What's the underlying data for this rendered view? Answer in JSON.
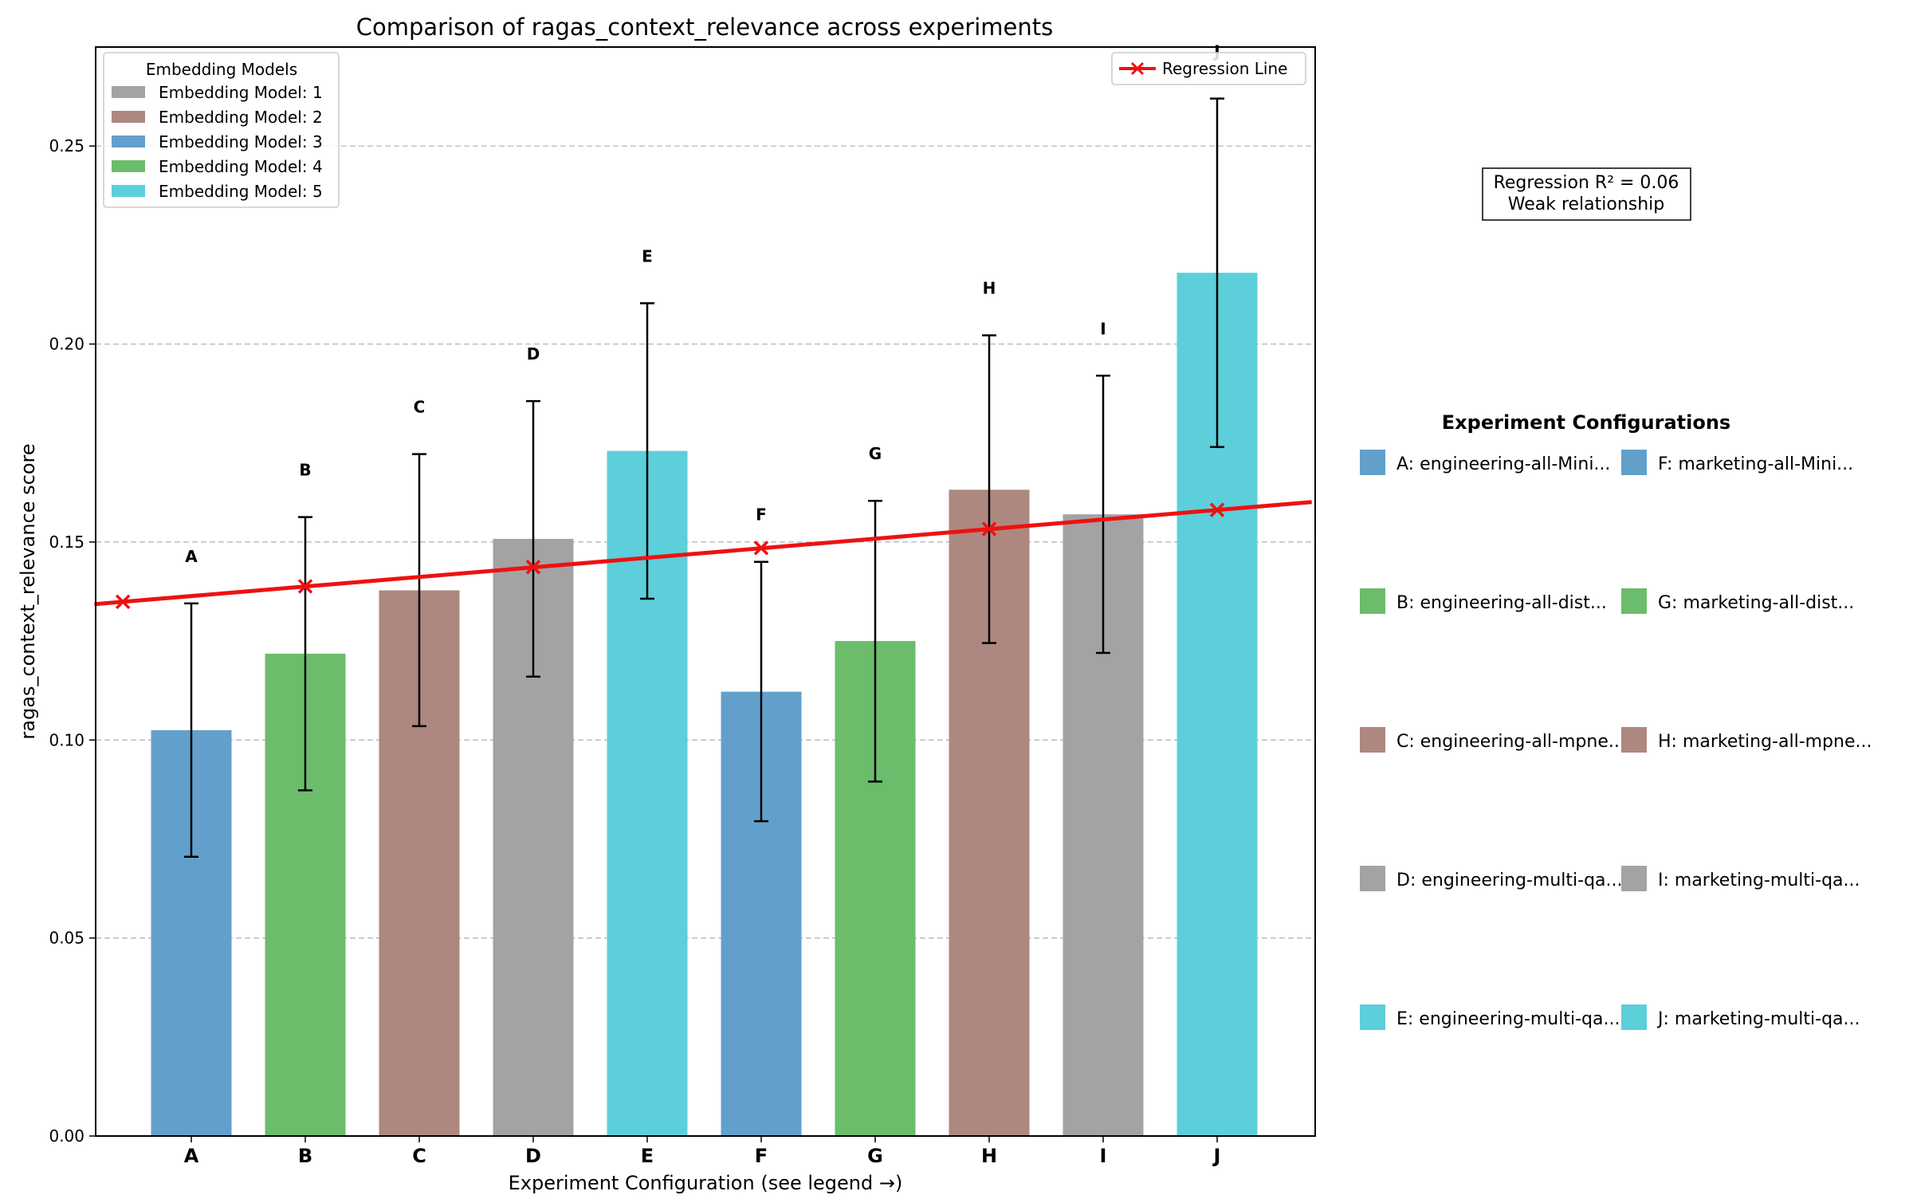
{
  "chart_data": {
    "type": "bar",
    "title": "Comparison of ragas_context_relevance across experiments",
    "xlabel": "Experiment Configuration (see legend →)",
    "ylabel": "ragas_context_relevance score",
    "ylim": [
      0,
      0.275
    ],
    "yticks": [
      0.0,
      0.05,
      0.1,
      0.15,
      0.2,
      0.25
    ],
    "ytick_labels": [
      "0.00",
      "0.05",
      "0.10",
      "0.15",
      "0.20",
      "0.25"
    ],
    "grid": "y-dashed",
    "categories": [
      "A",
      "B",
      "C",
      "D",
      "E",
      "F",
      "G",
      "H",
      "I",
      "J"
    ],
    "values": [
      0.1025,
      0.1218,
      0.1378,
      0.1508,
      0.173,
      0.1122,
      0.125,
      0.1632,
      0.157,
      0.218
    ],
    "error_low": [
      0.0705,
      0.0873,
      0.1035,
      0.116,
      0.1357,
      0.0795,
      0.0895,
      0.1245,
      0.122,
      0.174
    ],
    "error_high": [
      0.1345,
      0.1563,
      0.1722,
      0.1856,
      0.2103,
      0.145,
      0.1604,
      0.2022,
      0.192,
      0.262
    ],
    "bar_labels": [
      "A",
      "B",
      "C",
      "D",
      "E",
      "F",
      "G",
      "H",
      "I",
      "J"
    ],
    "embedding_model_index": [
      3,
      4,
      2,
      1,
      5,
      3,
      4,
      2,
      1,
      5
    ],
    "regression": {
      "label": "Regression Line",
      "color": "#ee1111",
      "x_start": -0.85,
      "y_start": 0.1343,
      "x_end": 9.83,
      "y_end": 0.1601,
      "markers_x": [
        -0.6,
        1.0,
        3.0,
        5.0,
        7.0,
        9.0
      ],
      "markers_y": [
        0.1349,
        0.1388,
        0.1437,
        0.1485,
        0.1533,
        0.1581
      ]
    },
    "stats_box": {
      "line1": "Regression R² = 0.06",
      "line2": "Weak relationship"
    },
    "legend_models": {
      "title": "Embedding Models",
      "placement": "top-left",
      "entries": [
        {
          "label": "Embedding Model: 1",
          "color": "#a3a3a3"
        },
        {
          "label": "Embedding Model: 2",
          "color": "#ad8880"
        },
        {
          "label": "Embedding Model: 3",
          "color": "#62a0cb"
        },
        {
          "label": "Embedding Model: 4",
          "color": "#6bbc6b"
        },
        {
          "label": "Embedding Model: 5",
          "color": "#5ccfda"
        }
      ]
    },
    "legend_configs": {
      "title": "Experiment Configurations",
      "placement": "right",
      "entries": [
        {
          "label": "A: engineering-all-Mini...",
          "color": "#62a0cb"
        },
        {
          "label": "F: marketing-all-Mini...",
          "color": "#62a0cb"
        },
        {
          "label": "B: engineering-all-dist...",
          "color": "#6bbc6b"
        },
        {
          "label": "G: marketing-all-dist...",
          "color": "#6bbc6b"
        },
        {
          "label": "C: engineering-all-mpne...",
          "color": "#ad8880"
        },
        {
          "label": "H: marketing-all-mpne...",
          "color": "#ad8880"
        },
        {
          "label": "D: engineering-multi-qa...",
          "color": "#a3a3a3"
        },
        {
          "label": "I: marketing-multi-qa...",
          "color": "#a3a3a3"
        },
        {
          "label": "E: engineering-multi-qa...",
          "color": "#5ccfda"
        },
        {
          "label": "J: marketing-multi-qa...",
          "color": "#5ccfda"
        }
      ]
    }
  }
}
